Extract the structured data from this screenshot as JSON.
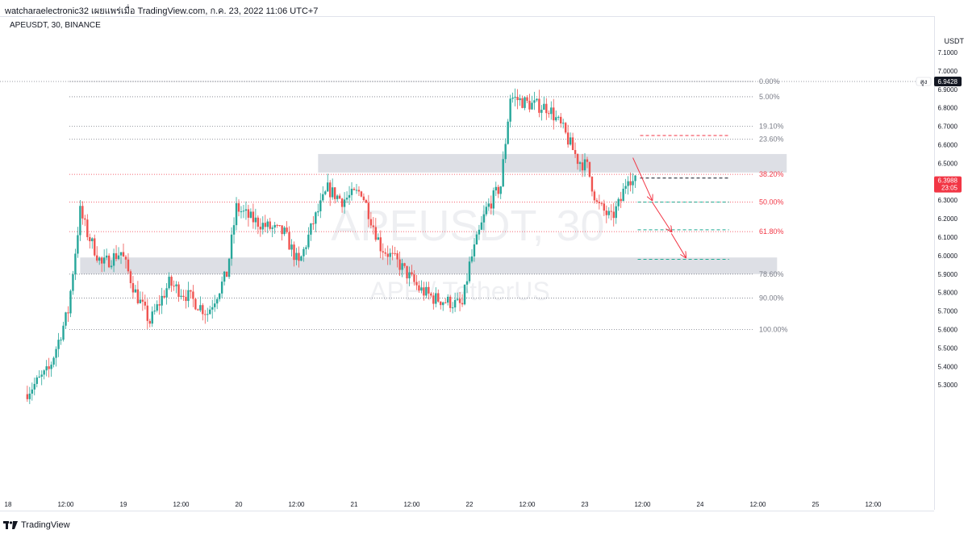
{
  "header": {
    "title": "watcharaelectronic32 เผยแพร่เมื่อ TradingView.com, ก.ค. 23, 2022 11:06 UTC+7",
    "symbol": "APEUSDT, 30, BINANCE",
    "currency": "USDT"
  },
  "footer": {
    "brand": "TradingView"
  },
  "watermark": {
    "symbol": "APEUSDT, 30",
    "pair": "APE / TetherUS"
  },
  "colors": {
    "up": "#26a69a",
    "down": "#ef5350",
    "zone": "#d1d4dc",
    "fib_gray": "#787b86",
    "fib_red": "#f23645",
    "price_label_bg": "#f23645",
    "high_label_bg": "#131722"
  },
  "price_labels": {
    "current": "6.3988",
    "countdown": "23:05",
    "high_tag": "สูง",
    "high": "6.9428"
  },
  "chart_data": {
    "type": "candlestick",
    "title": "APEUSDT, 30, BINANCE",
    "ylim": [
      5.25,
      7.2
    ],
    "y_ticks": [
      "7.1000",
      "7.0000",
      "6.9000",
      "6.8000",
      "6.7000",
      "6.6000",
      "6.5000",
      "6.4000",
      "6.3000",
      "6.2000",
      "6.1000",
      "6.0000",
      "5.9000",
      "5.8000",
      "5.7000",
      "5.6000",
      "5.5000",
      "5.4000",
      "5.3000"
    ],
    "x_ticks": [
      "18",
      "12:00",
      "19",
      "12:00",
      "20",
      "12:00",
      "21",
      "12:00",
      "22",
      "12:00",
      "23",
      "12:00",
      "24",
      "12:00",
      "25",
      "12:00"
    ],
    "x_range": [
      "2022-07-18 00:00",
      "2022-07-25 20:00"
    ],
    "grid": false,
    "fib_levels": [
      {
        "label": "0.00%",
        "price": 6.9428,
        "color": "gray"
      },
      {
        "label": "5.00%",
        "price": 6.86,
        "color": "gray"
      },
      {
        "label": "19.10%",
        "price": 6.7,
        "color": "gray"
      },
      {
        "label": "23.60%",
        "price": 6.63,
        "color": "gray"
      },
      {
        "label": "38.20%",
        "price": 6.44,
        "color": "red"
      },
      {
        "label": "50.00%",
        "price": 6.29,
        "color": "red"
      },
      {
        "label": "61.80%",
        "price": 6.13,
        "color": "red"
      },
      {
        "label": "78.60%",
        "price": 5.9,
        "color": "gray"
      },
      {
        "label": "90.00%",
        "price": 5.77,
        "color": "gray"
      },
      {
        "label": "100.00%",
        "price": 5.6,
        "color": "gray"
      }
    ],
    "zones": [
      {
        "from": "2022-07-20 16:30",
        "to": "2022-07-24 18:00",
        "low": 6.45,
        "high": 6.55
      },
      {
        "from": "2022-07-18 15:00",
        "to": "2022-07-24 16:00",
        "low": 5.9,
        "high": 5.99
      }
    ],
    "target_lines": [
      {
        "from": "2022-07-23 11:30",
        "to": "2022-07-24 06:00",
        "price": 6.65,
        "style": "dashed",
        "color": "red"
      },
      {
        "from": "2022-07-23 11:30",
        "to": "2022-07-24 06:00",
        "price": 6.42,
        "style": "dashed",
        "color": "black"
      },
      {
        "from": "2022-07-23 11:00",
        "to": "2022-07-24 06:00",
        "price": 6.29,
        "style": "dashed",
        "color": "teal"
      },
      {
        "from": "2022-07-23 11:00",
        "to": "2022-07-24 06:00",
        "price": 6.14,
        "style": "dashed",
        "color": "teal"
      },
      {
        "from": "2022-07-23 11:00",
        "to": "2022-07-24 06:00",
        "price": 5.98,
        "style": "dashed",
        "color": "teal"
      }
    ],
    "arrows": [
      {
        "from": {
          "t": "2022-07-23 10:00",
          "p": 6.53
        },
        "to": {
          "t": "2022-07-23 14:00",
          "p": 6.3
        }
      },
      {
        "from": {
          "t": "2022-07-23 14:00",
          "p": 6.29
        },
        "to": {
          "t": "2022-07-23 18:00",
          "p": 6.13
        }
      },
      {
        "from": {
          "t": "2022-07-23 18:00",
          "p": 6.12
        },
        "to": {
          "t": "2022-07-23 21:00",
          "p": 5.99
        }
      }
    ],
    "path": [
      [
        "2022-07-18 04:00",
        5.25
      ],
      [
        "2022-07-18 09:00",
        5.38
      ],
      [
        "2022-07-18 13:00",
        5.7
      ],
      [
        "2022-07-18 15:30",
        6.24
      ],
      [
        "2022-07-18 17:00",
        6.12
      ],
      [
        "2022-07-18 20:00",
        5.95
      ],
      [
        "2022-07-19 00:00",
        6.02
      ],
      [
        "2022-07-19 03:00",
        5.8
      ],
      [
        "2022-07-19 06:00",
        5.64
      ],
      [
        "2022-07-19 10:00",
        5.85
      ],
      [
        "2022-07-19 14:00",
        5.78
      ],
      [
        "2022-07-19 18:00",
        5.69
      ],
      [
        "2022-07-19 22:00",
        5.9
      ],
      [
        "2022-07-20 00:00",
        6.26
      ],
      [
        "2022-07-20 03:00",
        6.2
      ],
      [
        "2022-07-20 06:00",
        6.16
      ],
      [
        "2022-07-20 10:00",
        6.12
      ],
      [
        "2022-07-20 13:00",
        5.95
      ],
      [
        "2022-07-20 16:00",
        6.18
      ],
      [
        "2022-07-20 19:00",
        6.36
      ],
      [
        "2022-07-20 22:00",
        6.3
      ],
      [
        "2022-07-21 02:00",
        6.35
      ],
      [
        "2022-07-21 06:00",
        6.05
      ],
      [
        "2022-07-21 10:00",
        5.95
      ],
      [
        "2022-07-21 14:00",
        5.82
      ],
      [
        "2022-07-21 17:00",
        5.77
      ],
      [
        "2022-07-21 20:00",
        5.75
      ],
      [
        "2022-07-21 23:00",
        5.73
      ],
      [
        "2022-07-22 00:30",
        5.95
      ],
      [
        "2022-07-22 04:00",
        6.25
      ],
      [
        "2022-07-22 07:00",
        6.38
      ],
      [
        "2022-07-22 09:00",
        6.86
      ],
      [
        "2022-07-22 13:00",
        6.82
      ],
      [
        "2022-07-22 17:00",
        6.8
      ],
      [
        "2022-07-22 20:00",
        6.68
      ],
      [
        "2022-07-22 23:00",
        6.52
      ],
      [
        "2022-07-23 01:00",
        6.48
      ],
      [
        "2022-07-23 03:00",
        6.28
      ],
      [
        "2022-07-23 06:00",
        6.2
      ],
      [
        "2022-07-23 08:00",
        6.3
      ],
      [
        "2022-07-23 09:30",
        6.44
      ],
      [
        "2022-07-23 10:30",
        6.4
      ]
    ]
  }
}
